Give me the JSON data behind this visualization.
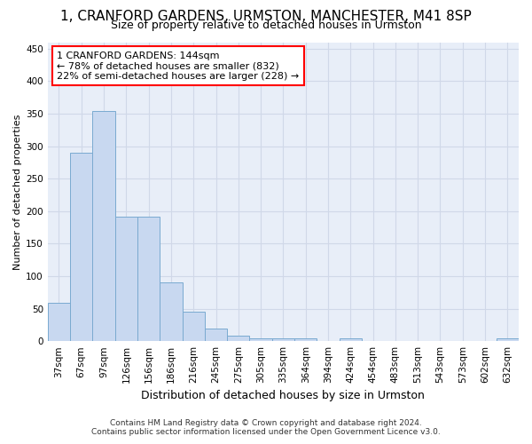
{
  "title_line1": "1, CRANFORD GARDENS, URMSTON, MANCHESTER, M41 8SP",
  "title_line2": "Size of property relative to detached houses in Urmston",
  "xlabel": "Distribution of detached houses by size in Urmston",
  "ylabel": "Number of detached properties",
  "footer_line1": "Contains HM Land Registry data © Crown copyright and database right 2024.",
  "footer_line2": "Contains public sector information licensed under the Open Government Licence v3.0.",
  "bar_labels": [
    "37sqm",
    "67sqm",
    "97sqm",
    "126sqm",
    "156sqm",
    "186sqm",
    "216sqm",
    "245sqm",
    "275sqm",
    "305sqm",
    "335sqm",
    "364sqm",
    "394sqm",
    "424sqm",
    "454sqm",
    "483sqm",
    "513sqm",
    "543sqm",
    "573sqm",
    "602sqm",
    "632sqm"
  ],
  "bar_values": [
    59,
    290,
    354,
    192,
    192,
    91,
    46,
    20,
    8,
    5,
    5,
    4,
    0,
    5,
    0,
    0,
    0,
    0,
    0,
    0,
    4
  ],
  "bar_color": "#c8d8f0",
  "bar_edge_color": "#7aaad0",
  "annotation_text": "1 CRANFORD GARDENS: 144sqm\n← 78% of detached houses are smaller (832)\n22% of semi-detached houses are larger (228) →",
  "annotation_box_color": "white",
  "annotation_box_edge": "red",
  "grid_color": "#d0d8e8",
  "background_color": "#ffffff",
  "plot_bg_color": "#e8eef8",
  "ylim": [
    0,
    460
  ],
  "yticks": [
    0,
    50,
    100,
    150,
    200,
    250,
    300,
    350,
    400,
    450
  ],
  "title1_fontsize": 11,
  "title2_fontsize": 9,
  "xlabel_fontsize": 9,
  "ylabel_fontsize": 8,
  "tick_fontsize": 7.5,
  "footer_fontsize": 6.5
}
